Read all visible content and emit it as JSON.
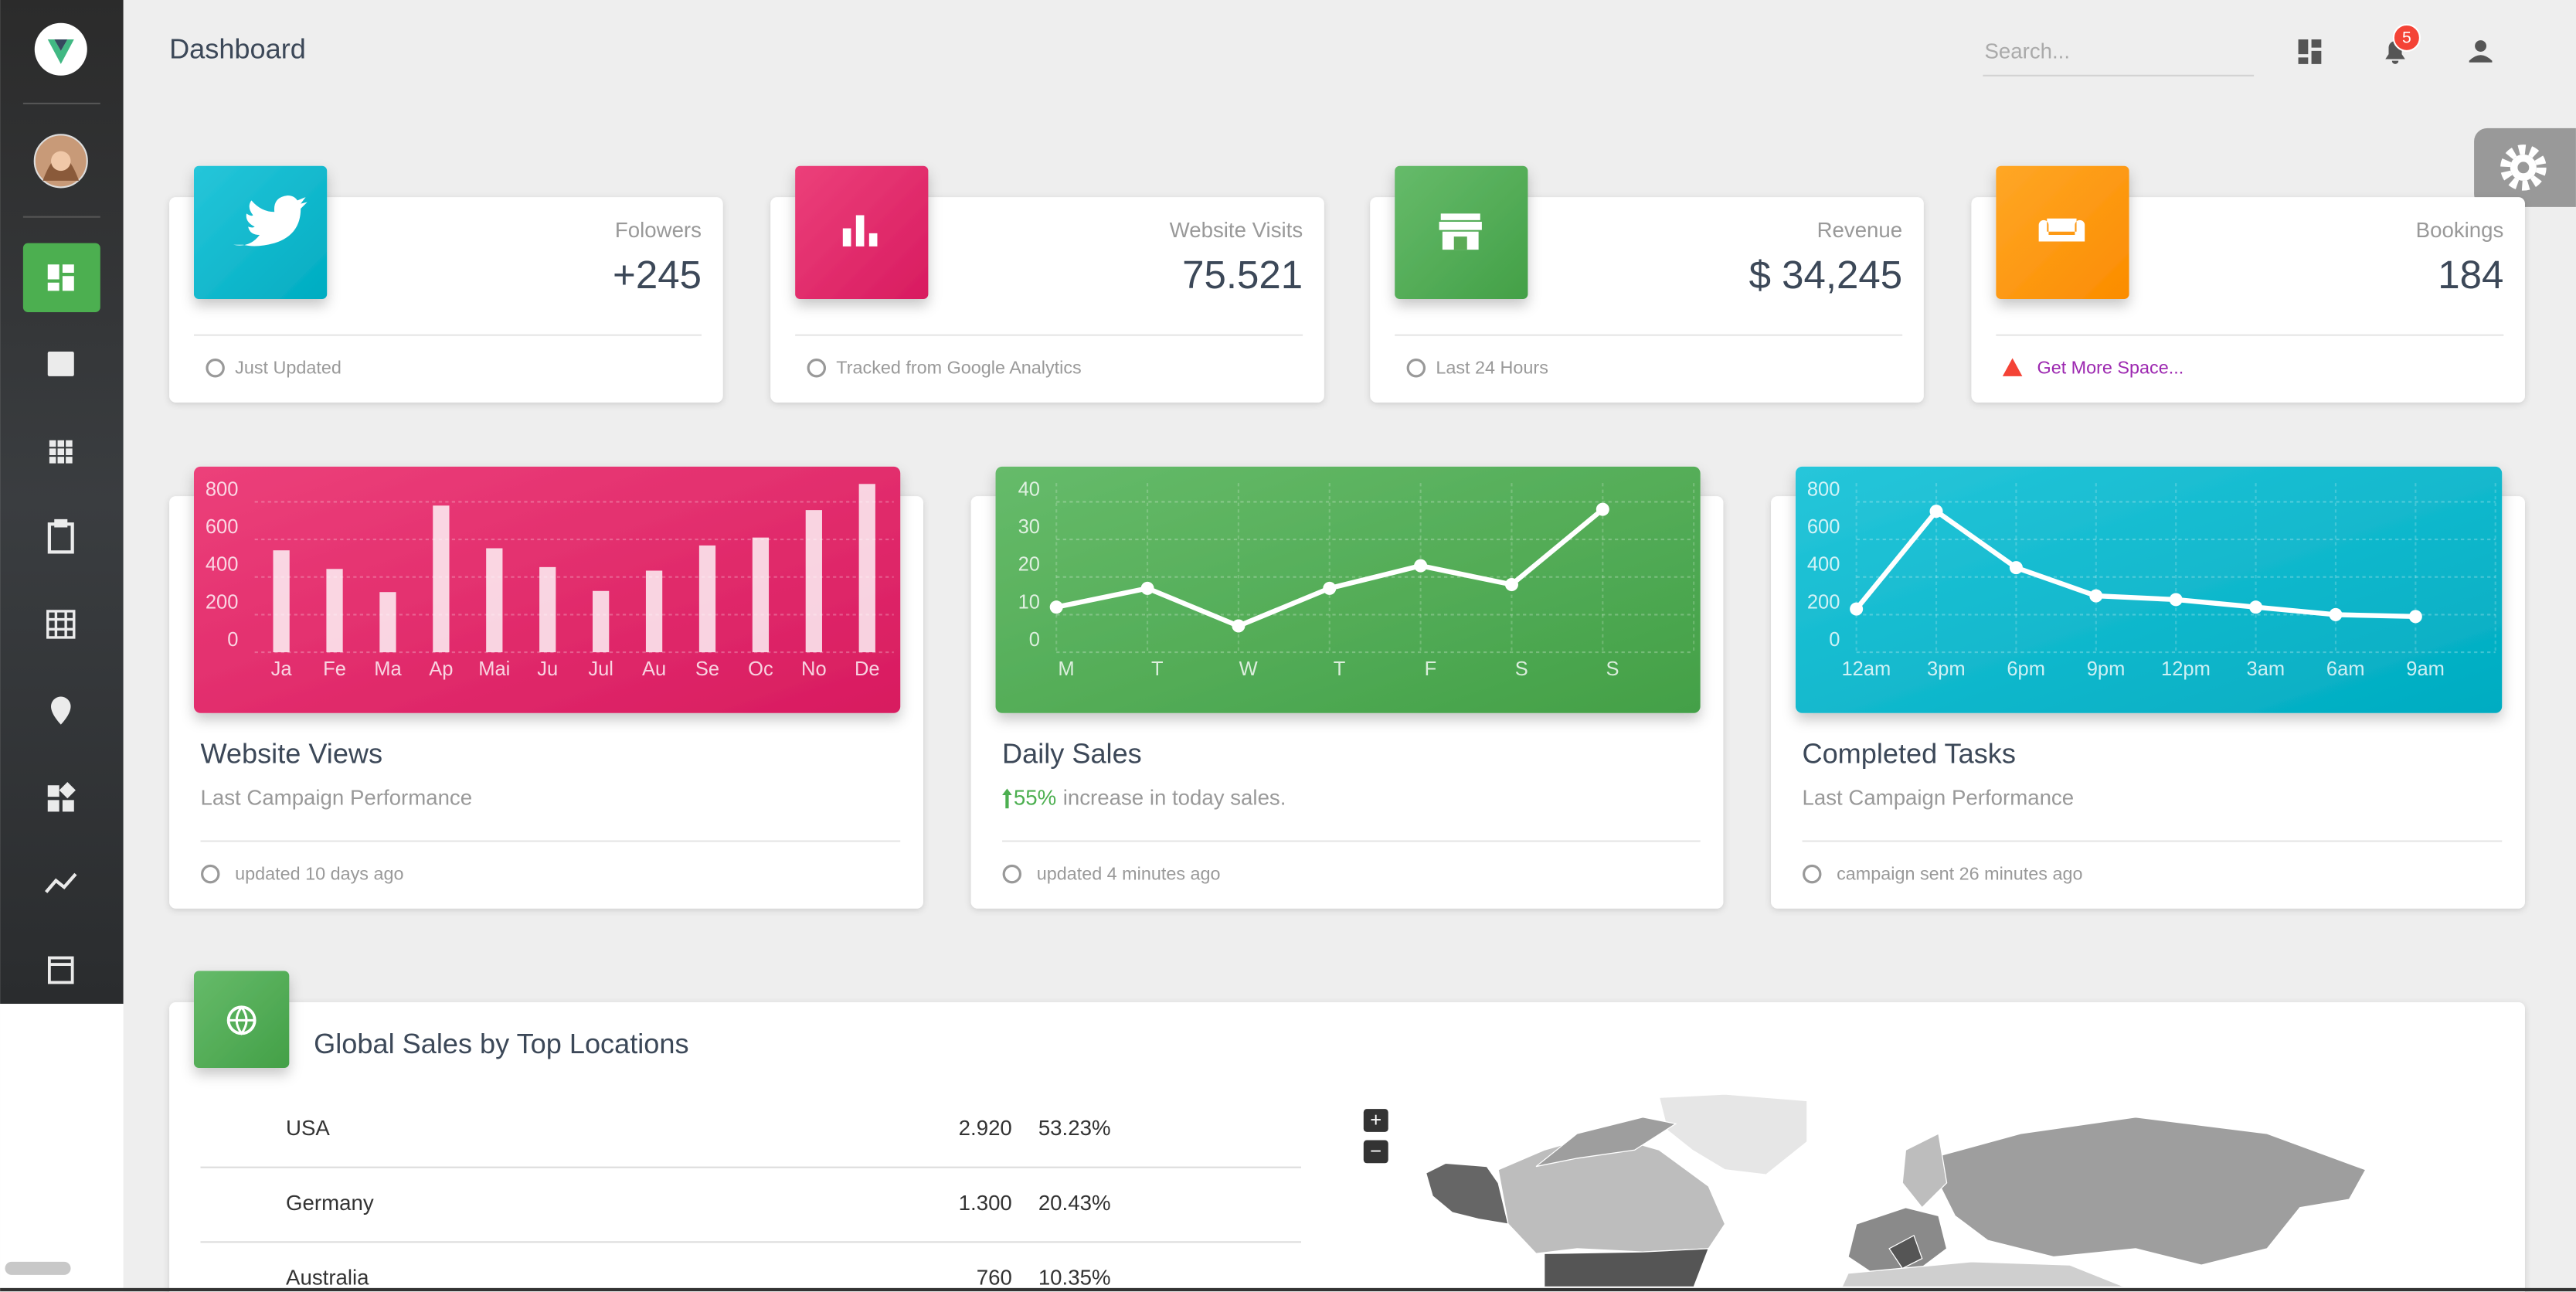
{
  "header": {
    "title": "Dashboard",
    "search_placeholder": "Search...",
    "notification_count": "5"
  },
  "stats": [
    {
      "label": "Folowers",
      "value": "+245",
      "footer": "Just Updated"
    },
    {
      "label": "Website Visits",
      "value": "75.521",
      "footer": "Tracked from Google Analytics"
    },
    {
      "label": "Revenue",
      "value": "$ 34,245",
      "footer": "Last 24 Hours"
    },
    {
      "label": "Bookings",
      "value": "184",
      "footer": "Get More Space..."
    }
  ],
  "charts": [
    {
      "type": "bar",
      "title": "Website Views",
      "subtitle": "Last Campaign Performance",
      "footer": "updated 10 days ago",
      "categories": [
        "Ja",
        "Fe",
        "Ma",
        "Ap",
        "Mai",
        "Ju",
        "Jul",
        "Au",
        "Se",
        "Oc",
        "No",
        "De"
      ],
      "values": [
        542,
        443,
        320,
        780,
        553,
        453,
        326,
        434,
        568,
        610,
        756,
        895
      ],
      "ylim": [
        0,
        900
      ],
      "yticks": [
        0,
        200,
        400,
        600,
        800
      ]
    },
    {
      "type": "line",
      "title": "Daily Sales",
      "highlight": "55%",
      "subtitle": "increase in today sales.",
      "footer": "updated 4 minutes ago",
      "categories": [
        "M",
        "T",
        "W",
        "T",
        "F",
        "S",
        "S"
      ],
      "values": [
        12,
        17,
        7,
        17,
        23,
        18,
        38
      ],
      "ylim": [
        0,
        45
      ],
      "yticks": [
        0,
        10,
        20,
        30,
        40
      ]
    },
    {
      "type": "line",
      "title": "Completed Tasks",
      "subtitle": "Last Campaign Performance",
      "footer": "campaign sent 26 minutes ago",
      "categories": [
        "12am",
        "3pm",
        "6pm",
        "9pm",
        "12pm",
        "3am",
        "6am",
        "9am"
      ],
      "values": [
        230,
        750,
        450,
        300,
        280,
        240,
        200,
        190
      ],
      "ylim": [
        0,
        900
      ],
      "yticks": [
        0,
        200,
        400,
        600,
        800
      ]
    }
  ],
  "locations": {
    "title": "Global Sales by Top Locations",
    "rows": [
      [
        "USA",
        "2.920",
        "53.23%"
      ],
      [
        "Germany",
        "1.300",
        "20.43%"
      ],
      [
        "Australia",
        "760",
        "10.35%"
      ]
    ]
  },
  "map_controls": [
    "+",
    "−"
  ]
}
